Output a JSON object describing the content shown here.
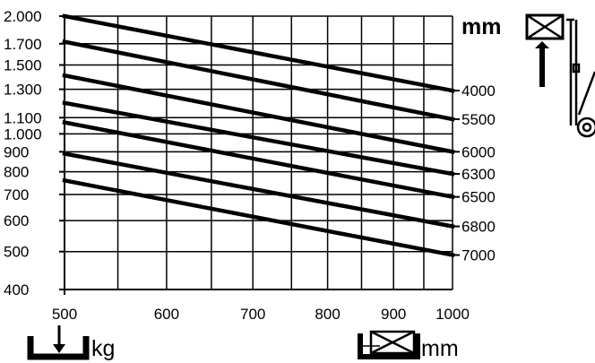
{
  "chart_data": {
    "type": "line",
    "title": "",
    "xlabel": "mm",
    "ylabel": "kg",
    "right_unit": "mm",
    "x_scale": "log",
    "y_scale": "log",
    "xlim": [
      500,
      1000
    ],
    "ylim": [
      400,
      2000
    ],
    "grid": true,
    "x_ticks": [
      500,
      600,
      700,
      800,
      900,
      1000
    ],
    "x_tick_labels": [
      "500",
      "600",
      "700",
      "800",
      "900",
      "1000"
    ],
    "y_ticks": [
      400,
      500,
      600,
      700,
      800,
      900,
      1000,
      1100,
      1300,
      1500,
      1700,
      2000
    ],
    "y_tick_labels": [
      "400",
      "500",
      "600",
      "700",
      "800",
      "900",
      "1.000",
      "1.100",
      "1.300",
      "1.500",
      "1.700",
      "2.000"
    ],
    "series": [
      {
        "name": "4000",
        "x": [
          500,
          1000
        ],
        "values": [
          2000,
          1290
        ]
      },
      {
        "name": "5500",
        "x": [
          500,
          1000
        ],
        "values": [
          1720,
          1090
        ]
      },
      {
        "name": "6000",
        "x": [
          500,
          1000
        ],
        "values": [
          1410,
          900
        ]
      },
      {
        "name": "6300",
        "x": [
          500,
          1000
        ],
        "values": [
          1200,
          790
        ]
      },
      {
        "name": "6500",
        "x": [
          500,
          1000
        ],
        "values": [
          1070,
          690
        ]
      },
      {
        "name": "6800",
        "x": [
          500,
          1000
        ],
        "values": [
          890,
          580
        ]
      },
      {
        "name": "7000",
        "x": [
          500,
          1000
        ],
        "values": [
          760,
          490
        ]
      }
    ]
  }
}
